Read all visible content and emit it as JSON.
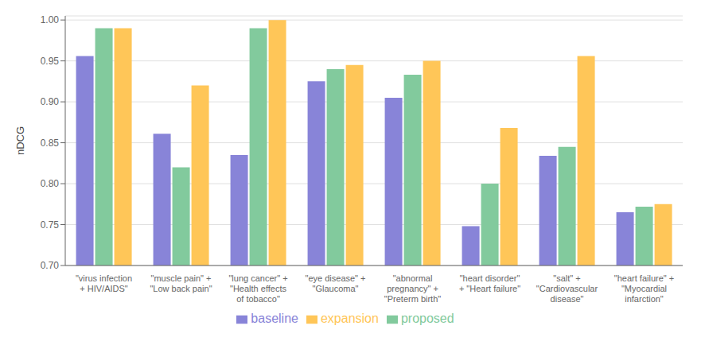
{
  "chart_data": {
    "type": "bar",
    "categories": [
      "\"virus infection\n+ HIV/AIDS\"",
      "\"muscle pain\" +\n\"Low back pain\"",
      "\"lung cancer\" +\n\"Health effects\nof tobacco\"",
      "\"eye disease\" +\n\"Glaucoma\"",
      "\"abnormal\npregnancy\" +\n\"Preterm birth\"",
      "\"heart disorder\"\n+ \"Heart failure\"",
      "\"salt\" +\n\"Cardiovascular\ndisease\"",
      "\"heart failure\" +\n\"Myocardial\ninfarction\""
    ],
    "series": [
      {
        "name": "baseline",
        "color": "#8884d8",
        "values": [
          0.956,
          0.861,
          0.835,
          0.925,
          0.905,
          0.748,
          0.834,
          0.765
        ]
      },
      {
        "name": "proposed",
        "color": "#82ca9d",
        "values": [
          0.99,
          0.82,
          0.99,
          0.94,
          0.933,
          0.8,
          0.845,
          0.772
        ]
      },
      {
        "name": "expansion",
        "color": "#ffc658",
        "values": [
          0.99,
          0.92,
          1.0,
          0.945,
          0.95,
          0.868,
          0.956,
          0.775
        ]
      }
    ],
    "ylabel": "nDCG",
    "ylim": [
      0.7,
      1.005
    ],
    "yticks": [
      {
        "value": 0.7,
        "label": "0.70"
      },
      0.75,
      {
        "value": 0.8,
        "label": "0.80"
      },
      0.85,
      {
        "value": 0.9,
        "label": "0.90"
      },
      0.95,
      {
        "value": 1.0,
        "label": "1.00"
      }
    ],
    "grid": true,
    "legend": "bottom"
  }
}
